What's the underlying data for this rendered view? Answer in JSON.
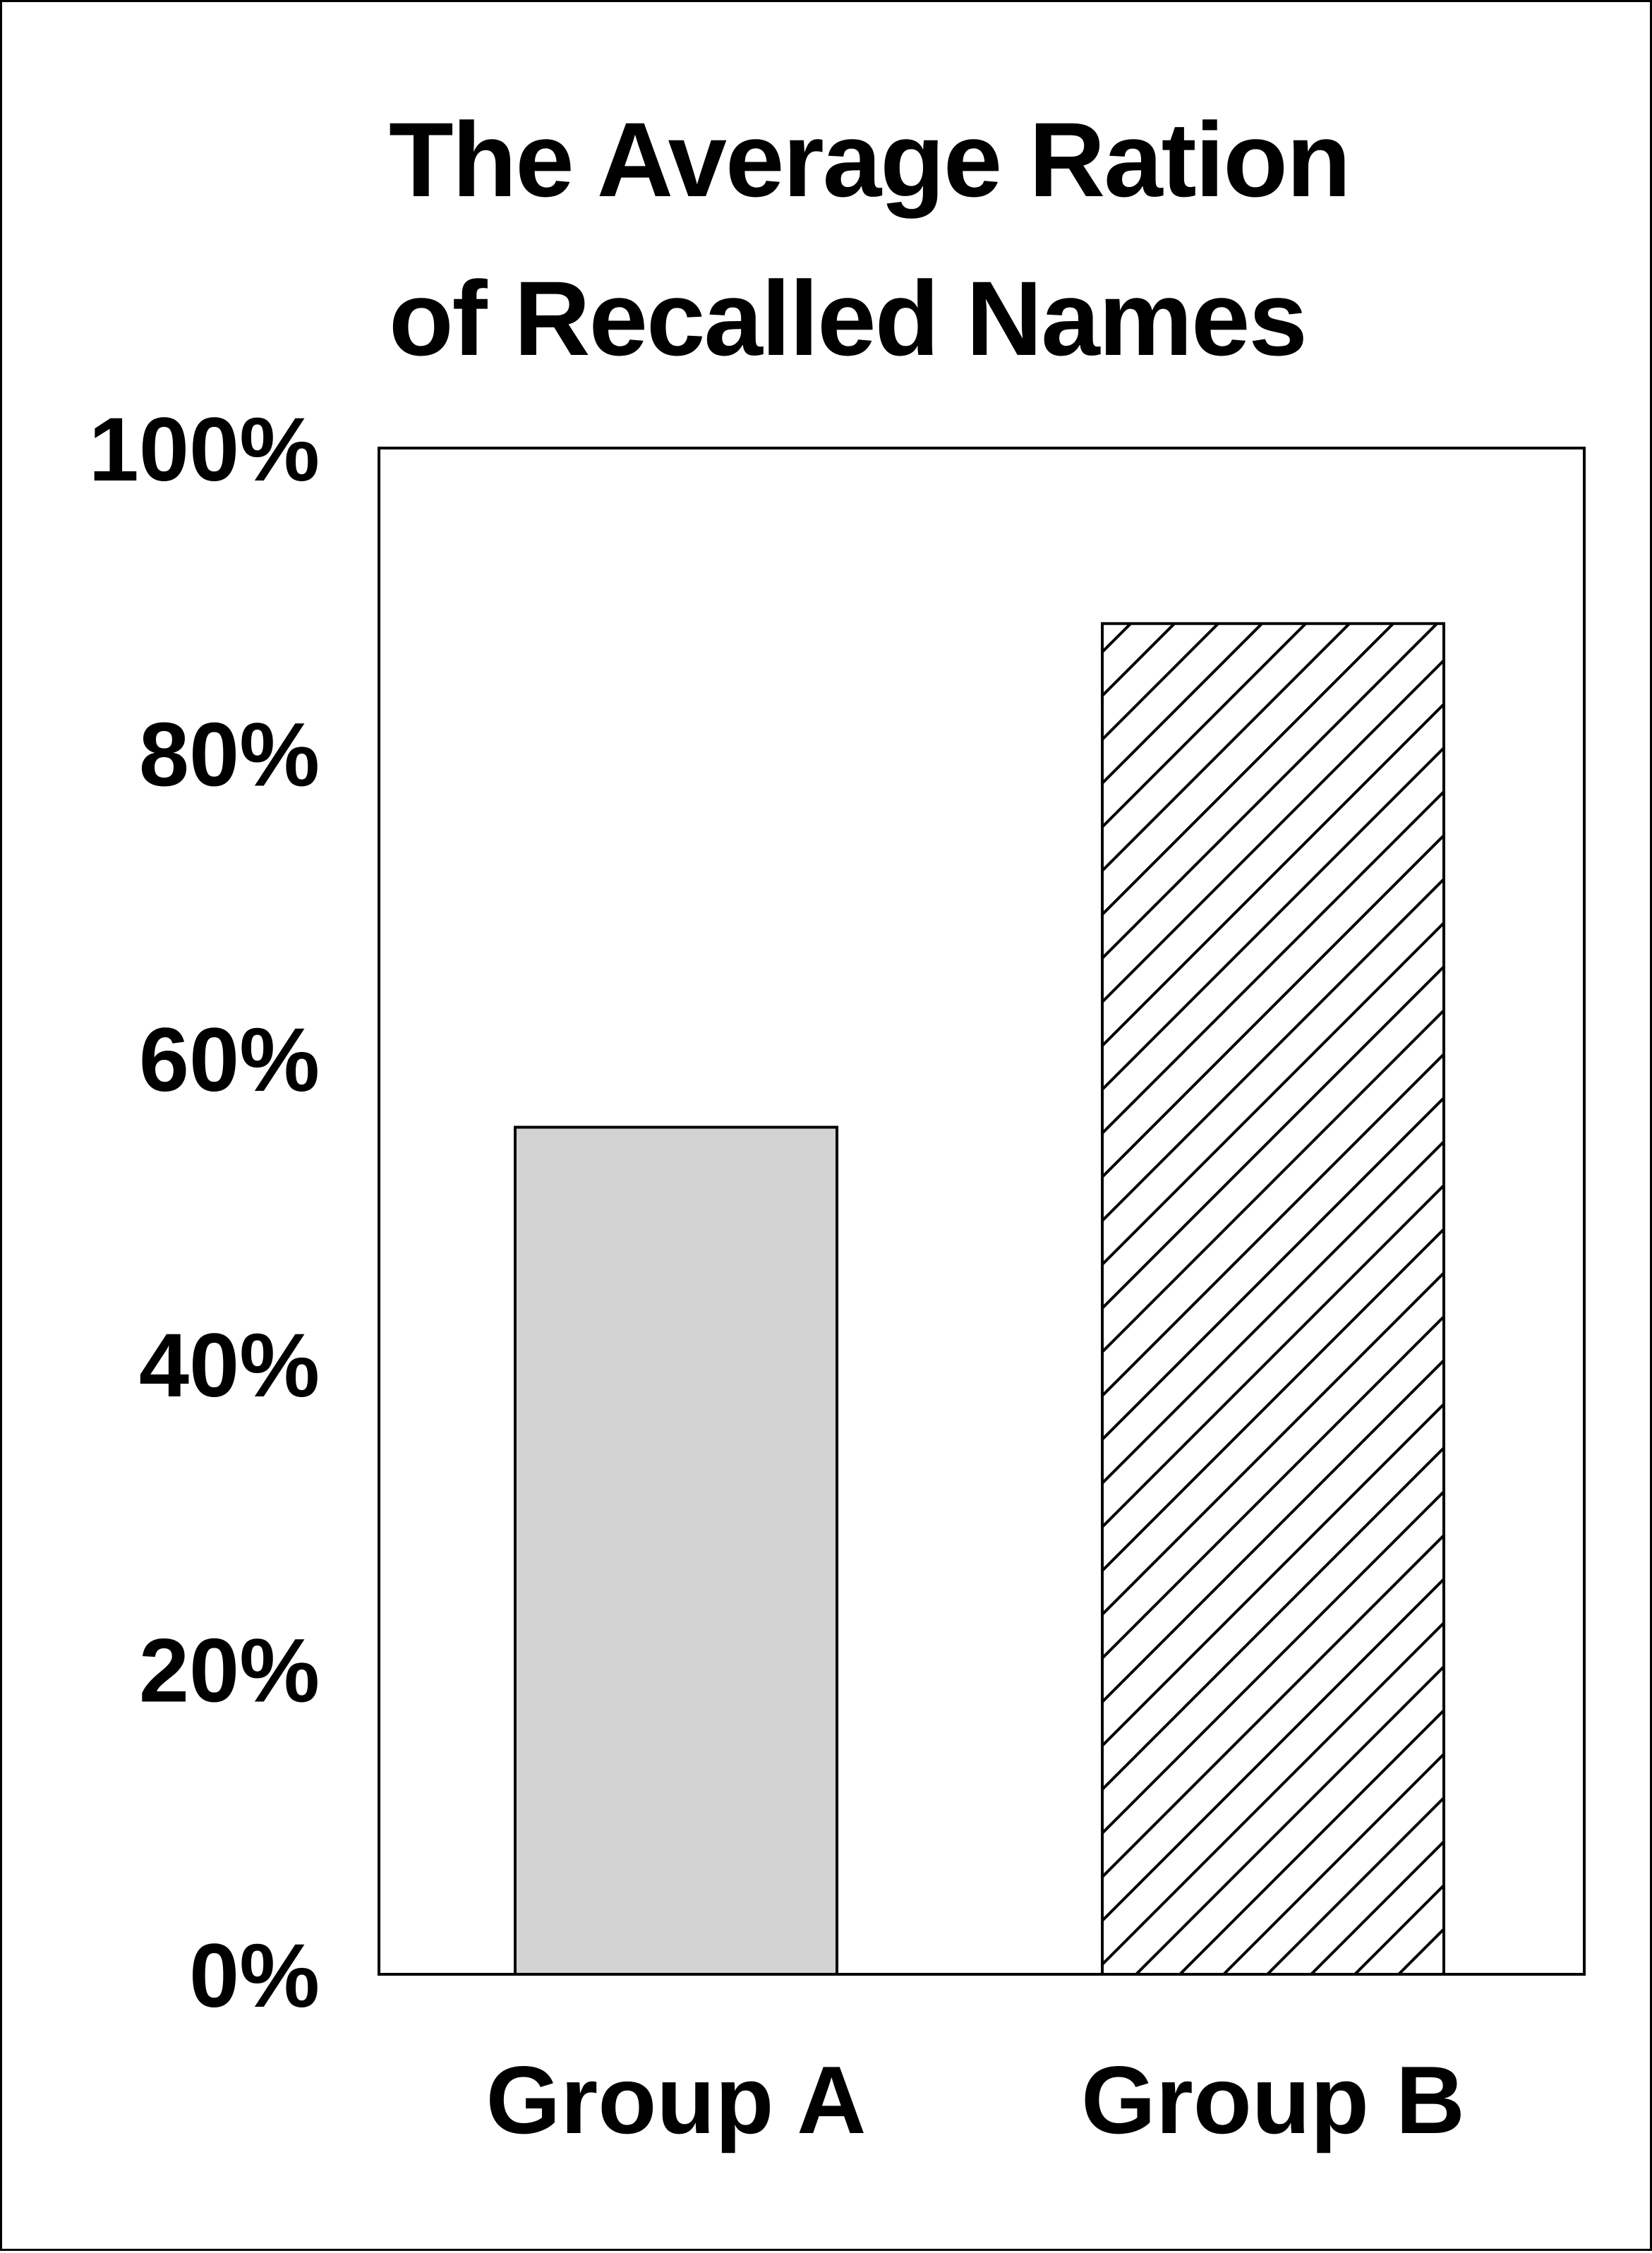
{
  "chart_data": {
    "type": "bar",
    "title_lines": [
      "The Average Ration",
      "of Recalled Names"
    ],
    "categories": [
      "Group A",
      "Group B"
    ],
    "values": [
      55.5,
      88.5
    ],
    "ylim": [
      0,
      100
    ],
    "yticks": [
      0,
      20,
      40,
      60,
      80,
      100
    ],
    "ytick_labels": [
      "0%",
      "20%",
      "40%",
      "60%",
      "80%",
      "100%"
    ],
    "xlabel": "",
    "ylabel": "",
    "grid": false,
    "legend": "none",
    "bar_styles": [
      {
        "fill": "#d3d3d3",
        "pattern": "solid"
      },
      {
        "fill": "#ffffff",
        "pattern": "diagonal-hatch"
      }
    ]
  }
}
